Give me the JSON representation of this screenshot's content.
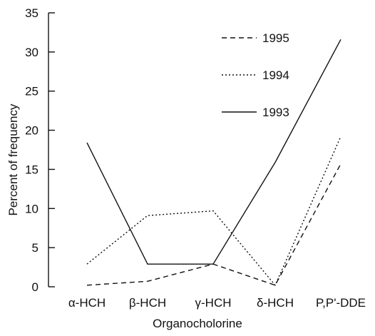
{
  "chart_data": {
    "type": "line",
    "categories": [
      "α-HCH",
      "β-HCH",
      "γ-HCH",
      "δ-HCH",
      "P,P'-DDE"
    ],
    "series": [
      {
        "name": "1995",
        "values": [
          0.2,
          0.7,
          2.9,
          0.2,
          15.7
        ],
        "dash": "dashed"
      },
      {
        "name": "1994",
        "values": [
          2.9,
          9.1,
          9.7,
          0.2,
          19.2
        ],
        "dash": "dotted"
      },
      {
        "name": "1993",
        "values": [
          18.4,
          2.9,
          2.9,
          15.9,
          31.6
        ],
        "dash": "solid"
      }
    ],
    "xlabel": "Organocholorine",
    "ylabel": "Percent of frequency",
    "ylim": [
      0,
      35
    ],
    "yticks": [
      "0",
      "5",
      "10",
      "15",
      "20",
      "25",
      "30",
      "35"
    ],
    "legend_position": "top-right",
    "grid": false,
    "color": "#111111"
  }
}
